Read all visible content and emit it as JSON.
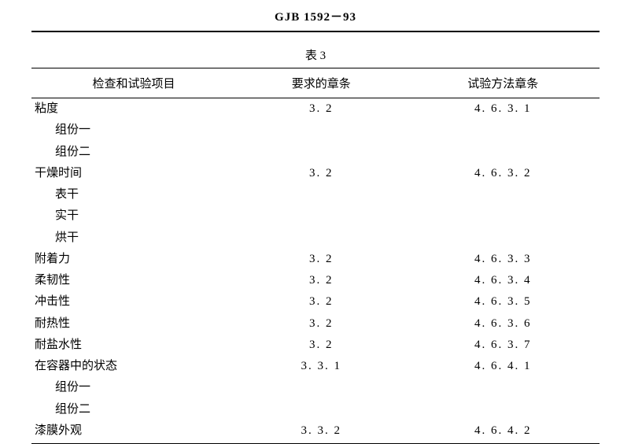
{
  "doc_id": "GJB 1592－93",
  "table_title": "表 3",
  "headers": {
    "item": "检查和试验项目",
    "req": "要求的章条",
    "method": "试验方法章条"
  },
  "rows": [
    {
      "item": "粘度",
      "indent": false,
      "req": "3. 2",
      "method": "4. 6. 3. 1"
    },
    {
      "item": "组份一",
      "indent": true,
      "req": "",
      "method": ""
    },
    {
      "item": "组份二",
      "indent": true,
      "req": "",
      "method": ""
    },
    {
      "item": "干燥时间",
      "indent": false,
      "req": "3. 2",
      "method": "4. 6. 3. 2"
    },
    {
      "item": "表干",
      "indent": true,
      "req": "",
      "method": ""
    },
    {
      "item": "实干",
      "indent": true,
      "req": "",
      "method": ""
    },
    {
      "item": "烘干",
      "indent": true,
      "req": "",
      "method": ""
    },
    {
      "item": "附着力",
      "indent": false,
      "req": "3. 2",
      "method": "4. 6. 3. 3"
    },
    {
      "item": "柔韧性",
      "indent": false,
      "req": "3. 2",
      "method": "4. 6. 3. 4"
    },
    {
      "item": "冲击性",
      "indent": false,
      "req": "3. 2",
      "method": "4. 6. 3. 5"
    },
    {
      "item": "耐热性",
      "indent": false,
      "req": "3. 2",
      "method": "4. 6. 3. 6"
    },
    {
      "item": "耐盐水性",
      "indent": false,
      "req": "3. 2",
      "method": "4. 6. 3. 7"
    },
    {
      "item": "在容器中的状态",
      "indent": false,
      "req": "3. 3. 1",
      "method": "4. 6. 4. 1"
    },
    {
      "item": "组份一",
      "indent": true,
      "req": "",
      "method": ""
    },
    {
      "item": "组份二",
      "indent": true,
      "req": "",
      "method": ""
    },
    {
      "item": "漆膜外观",
      "indent": false,
      "req": "3. 3. 2",
      "method": "4. 6. 4. 2"
    }
  ],
  "colors": {
    "text": "#000000",
    "background": "#ffffff",
    "rule": "#000000"
  },
  "fontsizes": {
    "body": 15,
    "header": 15
  }
}
